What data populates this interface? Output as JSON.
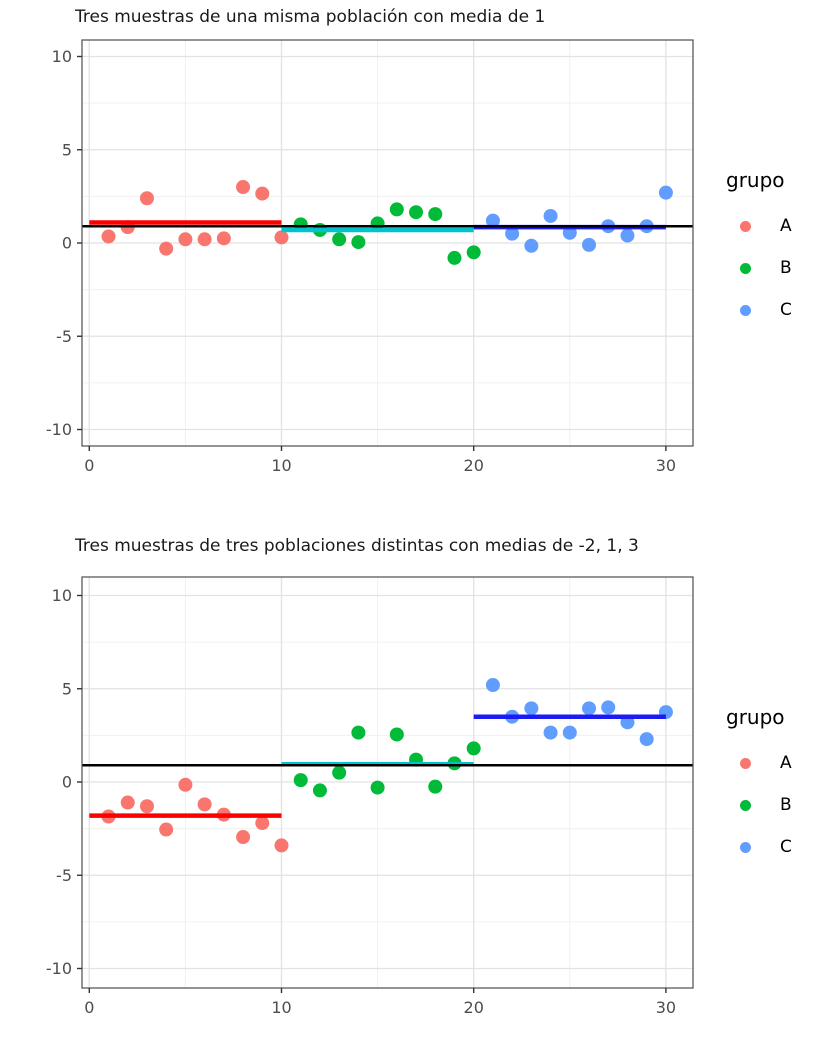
{
  "page": {
    "background": "#ffffff"
  },
  "colors": {
    "points": {
      "A": "#F8766D",
      "B": "#00BA38",
      "C": "#619CFF"
    },
    "mean_lines": {
      "A": "#FE0000",
      "B": "#00C4CC",
      "C": "#1B1BF4"
    },
    "overall_line": "#000000",
    "grid_major": "#E2E2E2",
    "grid_minor": "#F0F0F0",
    "panel_border": "#4D4D4D",
    "tick": "#333333",
    "axis_text": "#4D4D4D",
    "title_text": "#1A1A1A"
  },
  "legend": {
    "title": "grupo",
    "items": [
      {
        "label": "A"
      },
      {
        "label": "B"
      },
      {
        "label": "C"
      }
    ]
  },
  "chart_data": "see charts",
  "charts": [
    {
      "type": "scatter",
      "title": "Tres muestras de una misma población con media de 1",
      "xlabel": "",
      "ylabel": "",
      "legend_title": "grupo",
      "x_ticks": [
        0,
        10,
        20,
        30
      ],
      "y_ticks": [
        10,
        5,
        0,
        -5,
        -10
      ],
      "xlim": [
        -0.4,
        31.4
      ],
      "ylim": [
        -10.9,
        10.9
      ],
      "grid": true,
      "legend_position": "right",
      "overall_mean_line": 0.9,
      "series": [
        {
          "name": "A",
          "mean": 1.1,
          "mean_span": [
            0,
            10
          ],
          "x": [
            1,
            2,
            3,
            4,
            5,
            6,
            7,
            8,
            9,
            10
          ],
          "y": [
            0.35,
            0.85,
            2.4,
            -0.3,
            0.2,
            0.2,
            0.25,
            3.0,
            2.65,
            0.3
          ]
        },
        {
          "name": "B",
          "mean": 0.7,
          "mean_span": [
            10,
            20
          ],
          "x": [
            11,
            12,
            13,
            14,
            15,
            16,
            17,
            18,
            19,
            20
          ],
          "y": [
            1.0,
            0.7,
            0.2,
            0.05,
            1.05,
            1.8,
            1.65,
            1.55,
            -0.8,
            -0.5
          ]
        },
        {
          "name": "C",
          "mean": 0.85,
          "mean_span": [
            20,
            30
          ],
          "x": [
            21,
            22,
            23,
            24,
            25,
            26,
            27,
            28,
            29,
            30
          ],
          "y": [
            1.2,
            0.5,
            -0.15,
            1.45,
            0.55,
            -0.1,
            0.9,
            0.4,
            0.9,
            2.7
          ]
        }
      ]
    },
    {
      "type": "scatter",
      "title": "Tres muestras de tres poblaciones distintas con medias de -2, 1, 3",
      "xlabel": "",
      "ylabel": "",
      "legend_title": "grupo",
      "x_ticks": [
        0,
        10,
        20,
        30
      ],
      "y_ticks": [
        10,
        5,
        0,
        -5,
        -10
      ],
      "xlim": [
        -0.4,
        31.4
      ],
      "ylim": [
        -10.9,
        10.9
      ],
      "grid": true,
      "legend_position": "right",
      "overall_mean_line": 0.9,
      "series": [
        {
          "name": "A",
          "mean": -1.8,
          "mean_span": [
            0,
            10
          ],
          "x": [
            1,
            2,
            3,
            4,
            5,
            6,
            7,
            8,
            9,
            10
          ],
          "y": [
            -1.85,
            -1.1,
            -1.3,
            -2.55,
            -0.15,
            -1.2,
            -1.75,
            -2.95,
            -2.2,
            -3.4
          ]
        },
        {
          "name": "B",
          "mean": 0.95,
          "mean_span": [
            10,
            20
          ],
          "x": [
            11,
            12,
            13,
            14,
            15,
            16,
            17,
            18,
            19,
            20
          ],
          "y": [
            0.1,
            -0.45,
            0.5,
            2.65,
            -0.3,
            2.55,
            1.2,
            -0.25,
            1.0,
            1.8
          ]
        },
        {
          "name": "C",
          "mean": 3.5,
          "mean_span": [
            20,
            30
          ],
          "x": [
            21,
            22,
            23,
            24,
            25,
            26,
            27,
            28,
            29,
            30
          ],
          "y": [
            5.2,
            3.5,
            3.95,
            2.65,
            2.65,
            3.95,
            4.0,
            3.2,
            2.3,
            3.75
          ]
        }
      ]
    }
  ]
}
